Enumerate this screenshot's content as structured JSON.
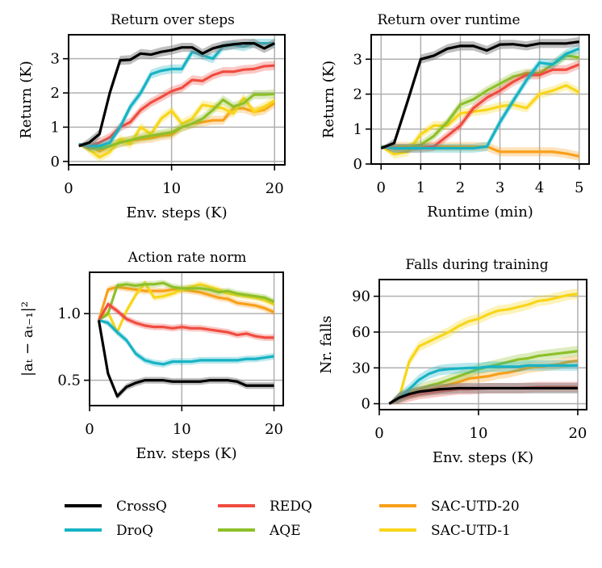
{
  "colors": {
    "CrossQ": "#000000",
    "DroQ": "#17b3c4",
    "REDQ": "#f04c40",
    "AQE": "#8dc02a",
    "SAC-UTD-20": "#f8a01a",
    "SAC-UTD-1": "#f8d61a",
    "grid": "#b0b0b0"
  },
  "legend": {
    "placement": "bottom",
    "entries": [
      "CrossQ",
      "REDQ",
      "SAC-UTD-20",
      "DroQ",
      "AQE",
      "SAC-UTD-1"
    ]
  },
  "chart_data": [
    {
      "type": "line",
      "title": "Return over steps",
      "xlabel": "Env. steps (K)",
      "ylabel": "Return (K)",
      "xlim": [
        0,
        21
      ],
      "ylim": [
        -0.1,
        3.7
      ],
      "xticks": [
        0,
        10,
        20
      ],
      "yticks": [
        0,
        1,
        2,
        3
      ],
      "grid": true,
      "x": [
        1,
        2,
        3,
        4,
        5,
        6,
        7,
        8,
        9,
        10,
        11,
        12,
        13,
        14,
        15,
        16,
        17,
        18,
        19,
        20
      ],
      "series": [
        {
          "name": "CrossQ",
          "values": [
            0.45,
            0.55,
            0.8,
            2.0,
            2.95,
            2.97,
            3.15,
            3.12,
            3.2,
            3.25,
            3.33,
            3.33,
            3.15,
            3.3,
            3.38,
            3.42,
            3.45,
            3.45,
            3.3,
            3.45
          ]
        },
        {
          "name": "DroQ",
          "values": [
            0.5,
            0.45,
            0.45,
            0.55,
            1.0,
            1.6,
            2.0,
            2.55,
            2.65,
            2.7,
            2.7,
            3.2,
            3.1,
            3.0,
            3.35,
            3.4,
            3.35,
            3.45,
            3.45,
            3.45
          ]
        },
        {
          "name": "REDQ",
          "values": [
            0.5,
            0.45,
            0.55,
            0.7,
            1.0,
            1.15,
            1.5,
            1.72,
            1.88,
            2.05,
            2.15,
            2.38,
            2.35,
            2.52,
            2.62,
            2.62,
            2.68,
            2.7,
            2.78,
            2.8
          ]
        },
        {
          "name": "AQE",
          "values": [
            0.5,
            0.4,
            0.38,
            0.45,
            0.55,
            0.62,
            0.7,
            0.75,
            0.8,
            0.85,
            1.0,
            1.1,
            1.25,
            1.5,
            1.8,
            1.6,
            1.7,
            1.95,
            1.95,
            1.97
          ]
        },
        {
          "name": "SAC-UTD-20",
          "values": [
            0.5,
            0.45,
            0.3,
            0.45,
            0.55,
            0.6,
            0.65,
            0.68,
            0.75,
            0.78,
            1.0,
            1.1,
            1.15,
            1.2,
            1.2,
            1.55,
            1.55,
            1.45,
            1.5,
            1.7
          ]
        },
        {
          "name": "SAC-UTD-1",
          "values": [
            0.5,
            0.35,
            0.12,
            0.28,
            0.65,
            0.5,
            1.0,
            0.8,
            1.25,
            1.48,
            1.1,
            1.25,
            1.65,
            1.6,
            1.55,
            1.4,
            1.85,
            1.45,
            1.6,
            1.78
          ]
        }
      ]
    },
    {
      "type": "line",
      "title": "Return over runtime",
      "xlabel": "Runtime (min)",
      "ylabel": "Return (K)",
      "xlim": [
        -0.25,
        5.25
      ],
      "ylim": [
        0,
        3.7
      ],
      "xticks": [
        0,
        1,
        2,
        3,
        4,
        5
      ],
      "yticks": [
        0,
        1,
        2,
        3
      ],
      "grid": true,
      "x": [
        0,
        0.33,
        0.67,
        1,
        1.33,
        1.67,
        2,
        2.33,
        2.67,
        3,
        3.33,
        3.67,
        4,
        4.33,
        4.67,
        5
      ],
      "series": [
        {
          "name": "CrossQ",
          "values": [
            0.45,
            0.6,
            1.8,
            3.0,
            3.1,
            3.3,
            3.38,
            3.38,
            3.25,
            3.42,
            3.43,
            3.38,
            3.45,
            3.45,
            3.45,
            3.5
          ]
        },
        {
          "name": "DroQ",
          "values": [
            0.5,
            0.45,
            0.45,
            0.45,
            0.45,
            0.45,
            0.45,
            0.45,
            0.5,
            1.2,
            1.8,
            2.4,
            2.9,
            2.85,
            3.15,
            3.3
          ]
        },
        {
          "name": "REDQ",
          "values": [
            0.5,
            0.45,
            0.45,
            0.45,
            0.5,
            0.8,
            1.1,
            1.6,
            1.9,
            2.1,
            2.35,
            2.55,
            2.55,
            2.7,
            2.7,
            2.85
          ]
        },
        {
          "name": "AQE",
          "values": [
            0.5,
            0.45,
            0.45,
            0.55,
            0.8,
            1.2,
            1.7,
            1.85,
            2.1,
            2.3,
            2.5,
            2.6,
            2.6,
            2.85,
            3.1,
            3.05
          ]
        },
        {
          "name": "SAC-UTD-20",
          "values": [
            0.5,
            0.5,
            0.5,
            0.5,
            0.5,
            0.5,
            0.5,
            0.5,
            0.5,
            0.35,
            0.35,
            0.35,
            0.35,
            0.35,
            0.3,
            0.22
          ]
        },
        {
          "name": "SAC-UTD-1",
          "values": [
            0.5,
            0.28,
            0.35,
            0.85,
            1.1,
            1.1,
            1.45,
            1.5,
            1.55,
            1.65,
            1.7,
            1.6,
            2.0,
            2.1,
            2.25,
            2.05
          ]
        }
      ]
    },
    {
      "type": "line",
      "title": "Action rate norm",
      "xlabel": "Env. steps (K)",
      "ylabel": "|aₜ − aₜ₋₁|²",
      "xlim": [
        0,
        21
      ],
      "ylim": [
        0.31,
        1.31
      ],
      "xticks": [
        0,
        10,
        20
      ],
      "yticks": [
        0.5,
        1.0
      ],
      "ytick_labels": [
        "0.5",
        "1.0"
      ],
      "grid": true,
      "x": [
        1,
        2,
        3,
        4,
        5,
        6,
        7,
        8,
        9,
        10,
        11,
        12,
        13,
        14,
        15,
        16,
        17,
        18,
        19,
        20
      ],
      "series": [
        {
          "name": "CrossQ",
          "values": [
            0.95,
            0.55,
            0.38,
            0.45,
            0.48,
            0.5,
            0.5,
            0.5,
            0.49,
            0.49,
            0.49,
            0.49,
            0.5,
            0.5,
            0.5,
            0.49,
            0.46,
            0.46,
            0.46,
            0.46
          ]
        },
        {
          "name": "DroQ",
          "values": [
            0.95,
            0.93,
            0.86,
            0.8,
            0.7,
            0.65,
            0.63,
            0.62,
            0.64,
            0.64,
            0.64,
            0.65,
            0.65,
            0.65,
            0.65,
            0.65,
            0.66,
            0.66,
            0.67,
            0.68
          ]
        },
        {
          "name": "REDQ",
          "values": [
            0.95,
            1.07,
            1.02,
            0.96,
            0.93,
            0.91,
            0.9,
            0.9,
            0.89,
            0.9,
            0.89,
            0.89,
            0.88,
            0.87,
            0.86,
            0.84,
            0.85,
            0.83,
            0.82,
            0.82
          ]
        },
        {
          "name": "AQE",
          "values": [
            0.95,
            1.0,
            1.21,
            1.22,
            1.21,
            1.22,
            1.22,
            1.23,
            1.2,
            1.19,
            1.19,
            1.19,
            1.18,
            1.16,
            1.17,
            1.15,
            1.14,
            1.13,
            1.12,
            1.09
          ]
        },
        {
          "name": "SAC-UTD-20",
          "values": [
            0.95,
            1.18,
            1.2,
            1.19,
            1.18,
            1.17,
            1.17,
            1.17,
            1.18,
            1.18,
            1.17,
            1.16,
            1.14,
            1.12,
            1.11,
            1.08,
            1.07,
            1.06,
            1.04,
            1.01
          ]
        },
        {
          "name": "SAC-UTD-1",
          "values": [
            0.95,
            1.01,
            0.86,
            1.02,
            1.14,
            1.23,
            1.12,
            1.13,
            1.15,
            1.18,
            1.2,
            1.22,
            1.2,
            1.18,
            1.15,
            1.14,
            1.13,
            1.12,
            1.1,
            1.07
          ]
        }
      ]
    },
    {
      "type": "line",
      "title": "Falls during training",
      "xlabel": "Env. steps (K)",
      "ylabel": "Nr. falls",
      "xlim": [
        0,
        20.9
      ],
      "ylim": [
        -5,
        104
      ],
      "xticks": [
        0,
        10,
        20
      ],
      "yticks": [
        0,
        30,
        60,
        90
      ],
      "grid": true,
      "x": [
        1,
        2,
        3,
        4,
        5,
        6,
        7,
        8,
        9,
        10,
        11,
        12,
        13,
        14,
        15,
        16,
        17,
        18,
        19,
        20
      ],
      "series": [
        {
          "name": "CrossQ",
          "values": [
            0,
            5,
            8,
            10,
            11,
            12,
            12.5,
            13,
            13,
            13,
            13,
            13,
            13,
            13,
            13,
            13,
            13,
            13,
            13,
            13
          ]
        },
        {
          "name": "DroQ",
          "values": [
            0,
            5,
            12,
            20,
            25,
            28,
            29,
            29.5,
            30,
            30,
            31,
            31,
            31,
            31,
            32,
            32,
            32,
            32,
            32,
            32
          ]
        },
        {
          "name": "REDQ",
          "values": [
            0,
            4,
            6,
            8,
            9,
            10,
            11,
            12,
            12,
            12.5,
            13,
            13,
            13,
            13,
            13.5,
            14,
            14,
            14,
            14,
            14
          ]
        },
        {
          "name": "AQE",
          "values": [
            0,
            5,
            10,
            12,
            15,
            17,
            20,
            23,
            26,
            29,
            31,
            33,
            35,
            37,
            38,
            40,
            41,
            42,
            43,
            44
          ]
        },
        {
          "name": "SAC-UTD-20",
          "values": [
            0,
            5,
            8,
            10,
            12,
            14,
            16,
            18,
            21,
            22,
            23,
            25,
            26,
            28,
            30,
            31,
            32,
            33,
            35,
            36
          ]
        },
        {
          "name": "SAC-UTD-1",
          "values": [
            0,
            5,
            35,
            48,
            52,
            56,
            60,
            65,
            69,
            71,
            75,
            78,
            79,
            81,
            83,
            86,
            87,
            89,
            91,
            92
          ]
        }
      ]
    }
  ]
}
